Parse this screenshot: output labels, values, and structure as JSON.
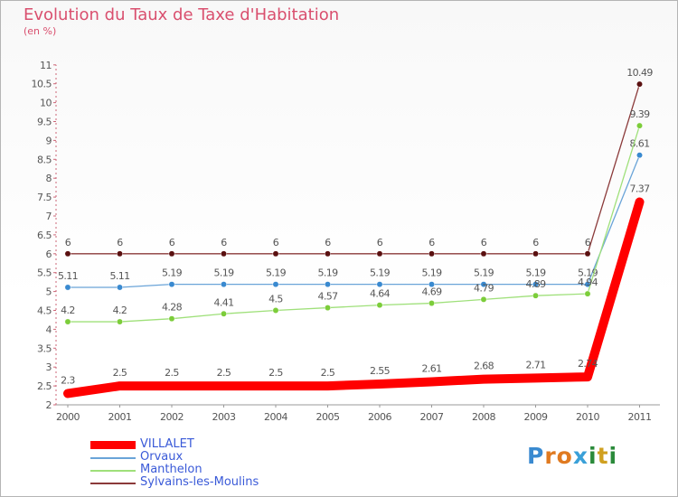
{
  "header": {
    "title": "Evolution du Taux de Taxe d'Habitation",
    "subtitle": "(en %)"
  },
  "logo": {
    "text": "Proxiti"
  },
  "chart_data": {
    "type": "line",
    "title": "Evolution du Taux de Taxe d'Habitation",
    "ylabel": "(en %)",
    "xlabel": "",
    "ylim": [
      2,
      11
    ],
    "y_ticks": [
      "2",
      "2.5",
      "3",
      "3.5",
      "4",
      "4.5",
      "5",
      "5.5",
      "6",
      "6.5",
      "7",
      "7.5",
      "8",
      "8.5",
      "9",
      "9.5",
      "10",
      "10.5",
      "11"
    ],
    "grid": false,
    "categories": [
      "2000",
      "2001",
      "2002",
      "2003",
      "2004",
      "2005",
      "2006",
      "2007",
      "2008",
      "2009",
      "2010",
      "2011"
    ],
    "series": [
      {
        "name": "VILLALET",
        "color": "#ff0000",
        "values": [
          2.3,
          2.5,
          2.5,
          2.5,
          2.5,
          2.5,
          2.55,
          2.61,
          2.68,
          2.71,
          2.74,
          7.37
        ],
        "labels": [
          "2.3",
          "2.5",
          "2.5",
          "2.5",
          "2.5",
          "2.5",
          "2.55",
          "2.61",
          "2.68",
          "2.71",
          "2.74",
          "7.37"
        ]
      },
      {
        "name": "Orvaux",
        "color": "#6aa4d8",
        "marker": "#3a8ad0",
        "values": [
          5.11,
          5.11,
          5.19,
          5.19,
          5.19,
          5.19,
          5.19,
          5.19,
          5.19,
          5.19,
          5.19,
          8.61
        ],
        "labels": [
          "5.11",
          "5.11",
          "5.19",
          "5.19",
          "5.19",
          "5.19",
          "5.19",
          "5.19",
          "5.19",
          "5.19",
          "5.19",
          "8.61"
        ]
      },
      {
        "name": "Manthelon",
        "color": "#9fe07a",
        "marker": "#7ccd3a",
        "values": [
          4.2,
          4.2,
          4.28,
          4.41,
          4.5,
          4.57,
          4.64,
          4.69,
          4.79,
          4.89,
          4.94,
          9.39
        ],
        "labels": [
          "4.2",
          "4.2",
          "4.28",
          "4.41",
          "4.5",
          "4.57",
          "4.64",
          "4.69",
          "4.79",
          "4.89",
          "4.94",
          "9.39"
        ]
      },
      {
        "name": "Sylvains-les-Moulins",
        "color": "#8b3a3a",
        "marker": "#5a1010",
        "values": [
          6,
          6,
          6,
          6,
          6,
          6,
          6,
          6,
          6,
          6,
          6,
          10.49
        ],
        "labels": [
          "6",
          "6",
          "6",
          "6",
          "6",
          "6",
          "6",
          "6",
          "6",
          "6",
          "6",
          "10.49"
        ]
      }
    ],
    "legend": [
      "VILLALET",
      "Orvaux",
      "Manthelon",
      "Sylvains-les-Moulins"
    ]
  }
}
